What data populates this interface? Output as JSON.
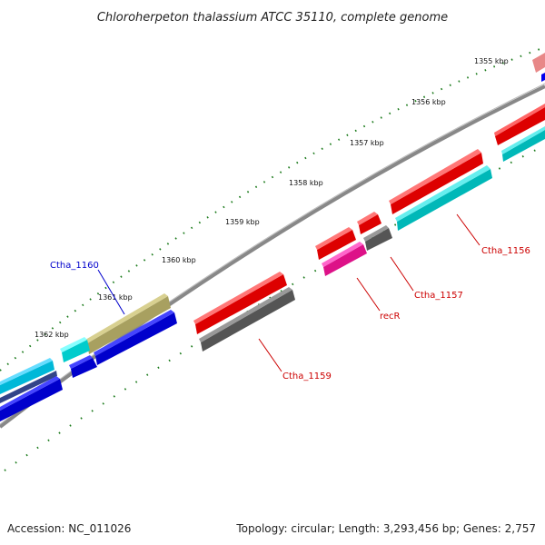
{
  "title": "Chloroherpeton thalassium ATCC 35110, complete genome",
  "footer": {
    "accession": "Accession: NC_011026",
    "summary": "Topology: circular; Length: 3,293,456 bp; Genes: 2,757"
  },
  "ruler": {
    "labels": [
      "1355 kbp",
      "1356 kbp",
      "1357 kbp",
      "1358 kbp",
      "1359 kbp",
      "1360 kbp",
      "1361 kbp",
      "1362 kbp"
    ]
  },
  "genes": [
    {
      "label": "Ctha_1156",
      "color": "#cc0000"
    },
    {
      "label": "Ctha_1157",
      "color": "#cc0000"
    },
    {
      "label": "recR",
      "color": "#cc0000"
    },
    {
      "label": "Ctha_1159",
      "color": "#cc0000"
    },
    {
      "label": "Ctha_1160",
      "color": "#0000cc"
    }
  ],
  "colors": {
    "backbone": "#888888",
    "tick": "#1a7a1a",
    "red": "#ff0000",
    "cyan": "#00cccc",
    "blue": "#0000ee",
    "gray": "#666666",
    "olive": "#b8b070",
    "magenta": "#ee1199"
  }
}
